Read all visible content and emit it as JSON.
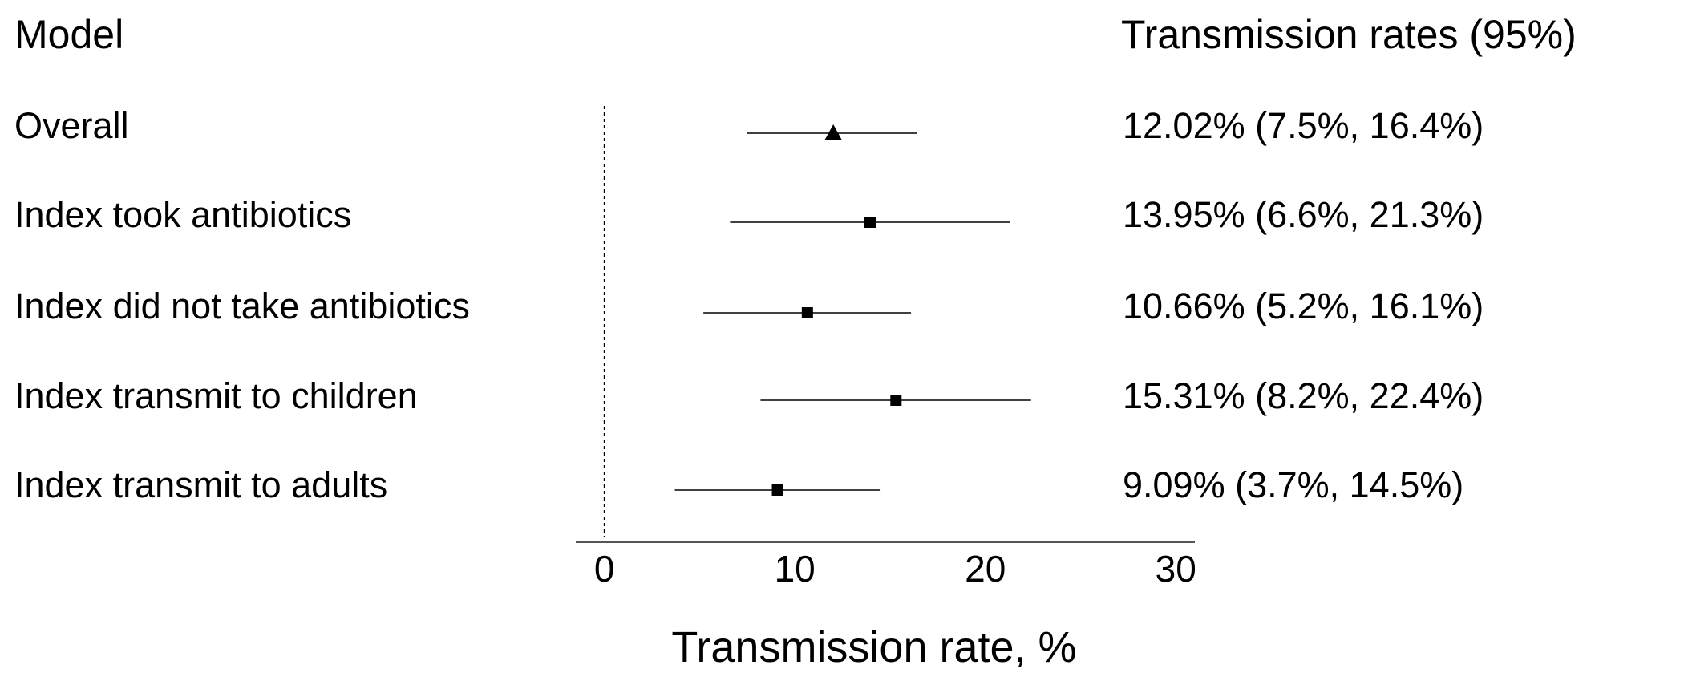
{
  "chart_data": {
    "type": "forest",
    "left_header": "Model",
    "right_header": "Transmission rates (95%)",
    "xlabel": "Transmission rate, %",
    "xlim": [
      -1.5,
      31
    ],
    "xticks": [
      0,
      10,
      20,
      30
    ],
    "xtick_labels": [
      "0",
      "10",
      "20",
      "30"
    ],
    "reference_line": 0,
    "rows": [
      {
        "label": "Overall",
        "estimate": 12.02,
        "lower": 7.5,
        "upper": 16.4,
        "marker": "triangle",
        "text": "12.02% (7.5%, 16.4%)"
      },
      {
        "label": "Index took antibiotics",
        "estimate": 13.95,
        "lower": 6.6,
        "upper": 21.3,
        "marker": "square",
        "text": "13.95% (6.6%, 21.3%)"
      },
      {
        "label": "Index did not take antibiotics",
        "estimate": 10.66,
        "lower": 5.2,
        "upper": 16.1,
        "marker": "square",
        "text": "10.66% (5.2%, 16.1%)"
      },
      {
        "label": "Index transmit to children",
        "estimate": 15.31,
        "lower": 8.2,
        "upper": 22.4,
        "marker": "square",
        "text": "15.31% (8.2%, 22.4%)"
      },
      {
        "label": "Index transmit to adults",
        "estimate": 9.09,
        "lower": 3.7,
        "upper": 14.5,
        "marker": "square",
        "text": "9.09% (3.7%, 14.5%)"
      }
    ]
  }
}
